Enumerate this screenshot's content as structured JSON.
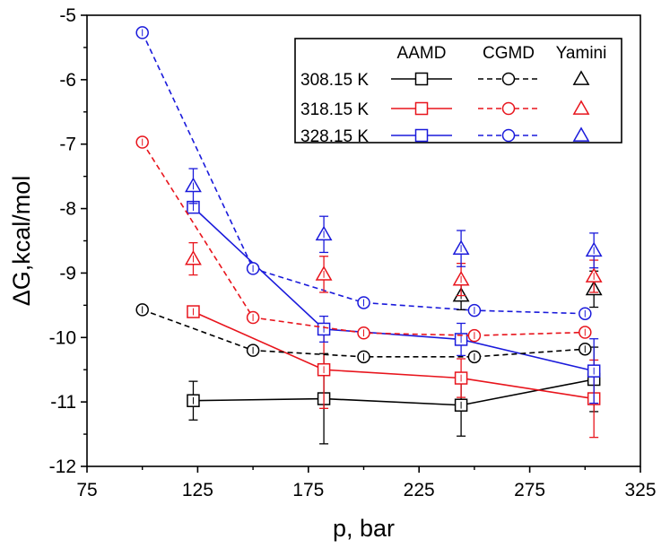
{
  "chart_data": {
    "type": "line",
    "xlabel": "p, bar",
    "ylabel": "ΔG,kcal/mol",
    "xlim": [
      75,
      325
    ],
    "ylim": [
      -12,
      -5
    ],
    "xticks": [
      75,
      125,
      175,
      225,
      275,
      325
    ],
    "yticks": [
      -12,
      -11,
      -10,
      -9,
      -8,
      -7,
      -6,
      -5
    ],
    "grid": false,
    "legend": {
      "placement": "top-right",
      "column_headers": [
        "AAMD",
        "CGMD",
        "Yamini"
      ],
      "row_labels": [
        "308.15 K",
        "318.15 K",
        "328.15 K"
      ]
    },
    "series": [
      {
        "method": "AAMD",
        "temperature": "308.15 K",
        "color": "#000000",
        "marker": "square",
        "dash": "solid",
        "points": [
          {
            "x": 123,
            "y": -10.98,
            "err": 0.3
          },
          {
            "x": 182,
            "y": -10.95,
            "err": 0.7
          },
          {
            "x": 244,
            "y": -11.05,
            "err": 0.48
          },
          {
            "x": 304,
            "y": -10.65,
            "err": 0.5
          }
        ]
      },
      {
        "method": "AAMD",
        "temperature": "318.15 K",
        "color": "#e8141c",
        "marker": "square",
        "dash": "solid",
        "points": [
          {
            "x": 123,
            "y": -9.6,
            "err": 0
          },
          {
            "x": 182,
            "y": -10.5,
            "err": 0.6
          },
          {
            "x": 244,
            "y": -10.63,
            "err": 0.3
          },
          {
            "x": 304,
            "y": -10.95,
            "err": 0.6
          }
        ]
      },
      {
        "method": "AAMD",
        "temperature": "328.15 K",
        "color": "#1a1adb",
        "marker": "square",
        "dash": "solid",
        "points": [
          {
            "x": 123,
            "y": -7.98,
            "err": 0
          },
          {
            "x": 182,
            "y": -9.87,
            "err": 0.2
          },
          {
            "x": 244,
            "y": -10.03,
            "err": 0.25
          },
          {
            "x": 304,
            "y": -10.52,
            "err": 0.5
          }
        ]
      },
      {
        "method": "CGMD",
        "temperature": "308.15 K",
        "color": "#000000",
        "marker": "circle",
        "dash": "dashed",
        "points": [
          {
            "x": 100,
            "y": -9.57
          },
          {
            "x": 150,
            "y": -10.2
          },
          {
            "x": 200,
            "y": -10.3
          },
          {
            "x": 250,
            "y": -10.3
          },
          {
            "x": 300,
            "y": -10.18
          }
        ]
      },
      {
        "method": "CGMD",
        "temperature": "318.15 K",
        "color": "#e8141c",
        "marker": "circle",
        "dash": "dashed",
        "points": [
          {
            "x": 100,
            "y": -6.97
          },
          {
            "x": 150,
            "y": -9.69
          },
          {
            "x": 200,
            "y": -9.93
          },
          {
            "x": 250,
            "y": -9.97
          },
          {
            "x": 300,
            "y": -9.92
          }
        ]
      },
      {
        "method": "CGMD",
        "temperature": "328.15 K",
        "color": "#1a1adb",
        "marker": "circle",
        "dash": "dashed",
        "points": [
          {
            "x": 100,
            "y": -5.27
          },
          {
            "x": 150,
            "y": -8.93
          },
          {
            "x": 200,
            "y": -9.46
          },
          {
            "x": 250,
            "y": -9.58
          },
          {
            "x": 300,
            "y": -9.63
          }
        ]
      },
      {
        "method": "Yamini",
        "temperature": "308.15 K",
        "color": "#000000",
        "marker": "triangle",
        "dash": "none",
        "points": [
          {
            "x": 244,
            "y": -9.35,
            "err": 0.22
          },
          {
            "x": 304,
            "y": -9.25,
            "err": 0.28
          }
        ]
      },
      {
        "method": "Yamini",
        "temperature": "318.15 K",
        "color": "#e8141c",
        "marker": "triangle",
        "dash": "none",
        "points": [
          {
            "x": 123,
            "y": -8.78,
            "err": 0.25
          },
          {
            "x": 182,
            "y": -9.02,
            "err": 0.28
          },
          {
            "x": 244,
            "y": -9.1,
            "err": 0.25
          },
          {
            "x": 304,
            "y": -9.05,
            "err": 0.25
          }
        ]
      },
      {
        "method": "Yamini",
        "temperature": "328.15 K",
        "color": "#1a1adb",
        "marker": "triangle",
        "dash": "none",
        "points": [
          {
            "x": 123,
            "y": -7.65,
            "err": 0.27
          },
          {
            "x": 182,
            "y": -8.4,
            "err": 0.28
          },
          {
            "x": 244,
            "y": -8.62,
            "err": 0.28
          },
          {
            "x": 304,
            "y": -8.65,
            "err": 0.27
          }
        ]
      }
    ]
  }
}
